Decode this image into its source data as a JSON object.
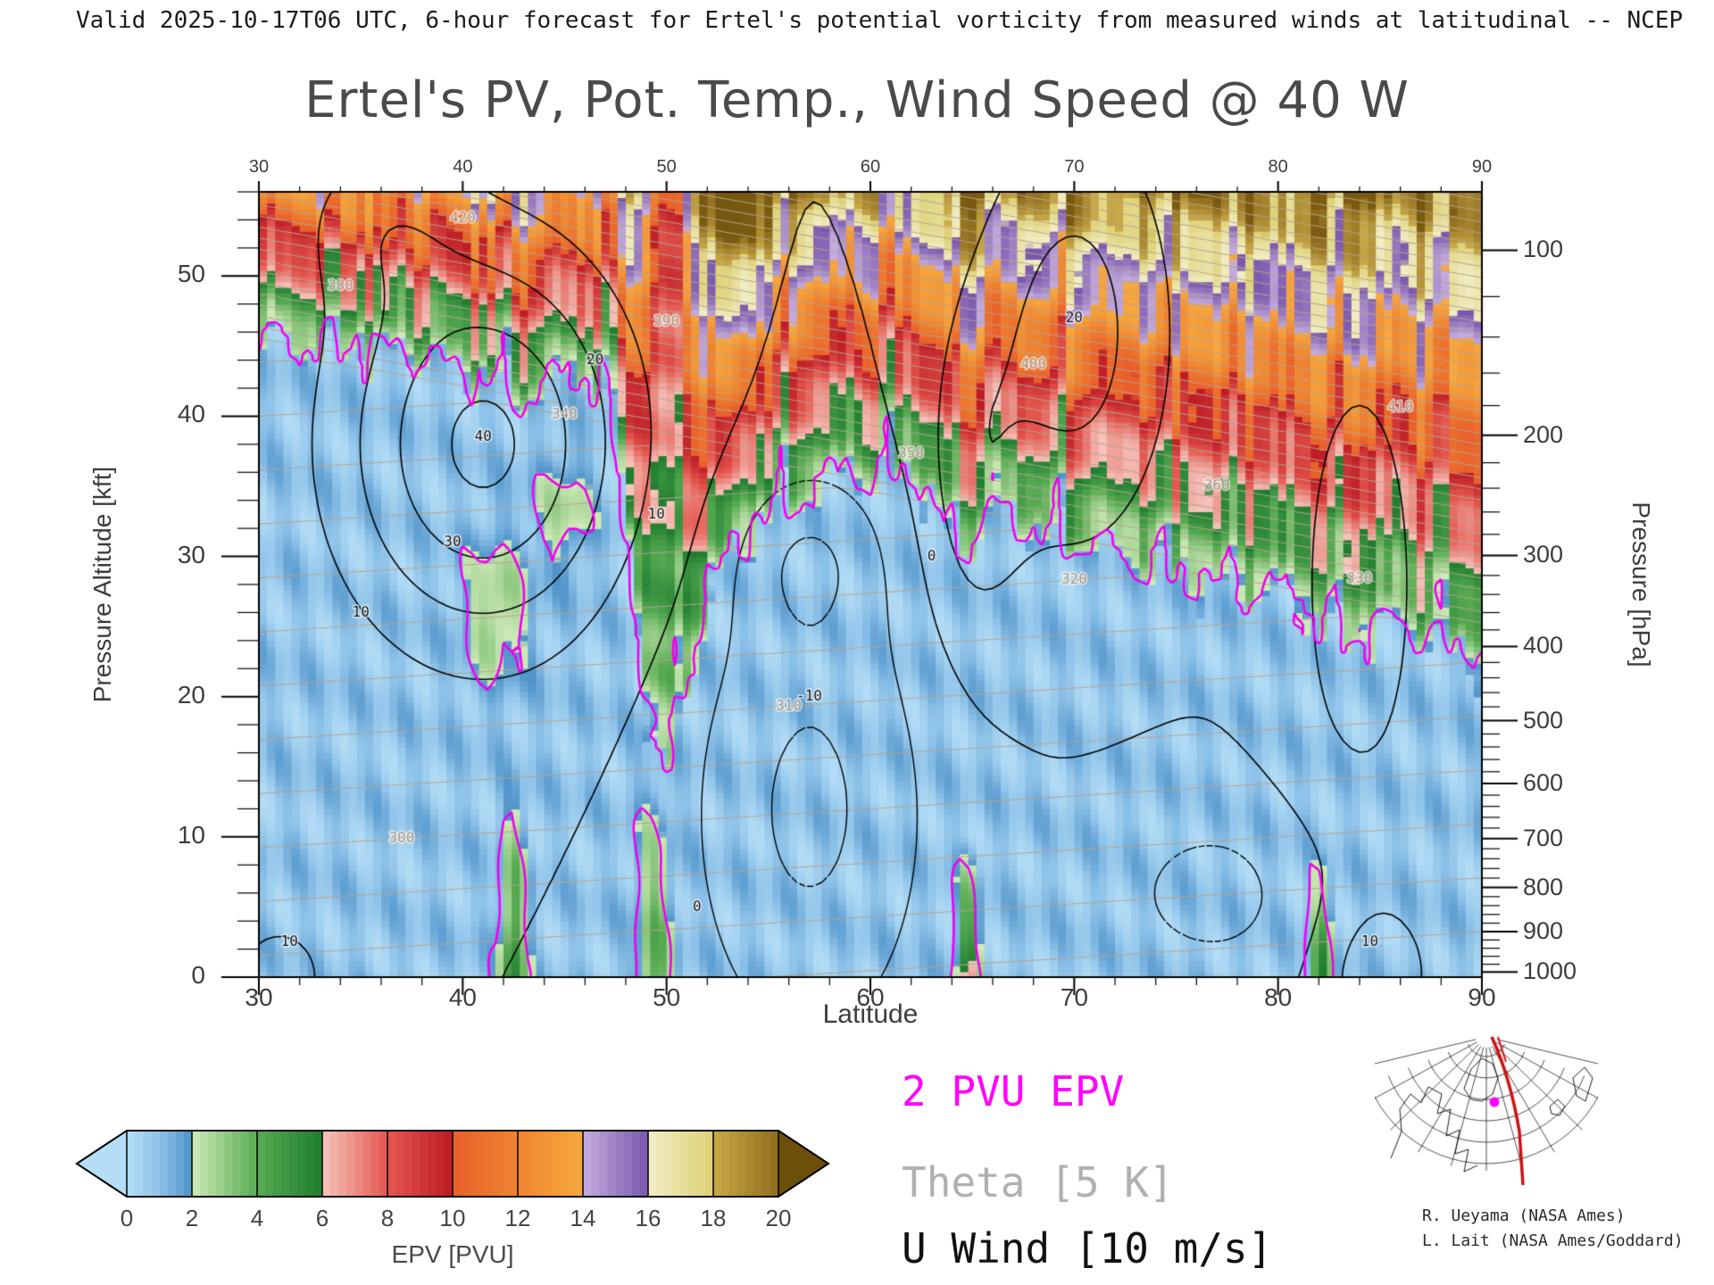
{
  "header": {
    "text": "Valid 2025-10-17T06 UTC, 6-hour forecast for Ertel's potential vorticity from measured winds at latitudinal -- NCEP"
  },
  "title": "Ertel's PV, Pot. Temp., Wind Speed @ 40 W",
  "legend": {
    "epv": "2 PVU EPV",
    "theta": "Theta [5 K]",
    "uwind": "U Wind [10 m/s]",
    "epv_color": "#ff00ff",
    "theta_color": "#b0b0b0",
    "uwind_color": "#111111"
  },
  "credits": [
    "R. Ueyama (NASA Ames)",
    "L. Lait (NASA Ames/Goddard)"
  ],
  "chart_data": {
    "type": "heatmap",
    "title": "Ertel's PV, Pot. Temp., Wind Speed @ 40 W",
    "xlabel": "Latitude",
    "ylabel_left": "Pressure Altitude [kft]",
    "ylabel_right": "Pressure [hPa]",
    "xlim": [
      30,
      90
    ],
    "ylim_kft": [
      0,
      56
    ],
    "x_ticks": [
      30,
      40,
      50,
      60,
      70,
      80,
      90
    ],
    "y_ticks_left": [
      0,
      10,
      20,
      30,
      40,
      50
    ],
    "y_ticks_right": [
      100,
      200,
      300,
      400,
      500,
      600,
      700,
      800,
      900,
      1000
    ],
    "grid": false,
    "legend_position": "bottom",
    "colorbar": {
      "label": "EPV [PVU]",
      "ticks": [
        0,
        2,
        4,
        6,
        8,
        10,
        12,
        14,
        16,
        18,
        20
      ]
    },
    "colormap": [
      [
        0,
        "#b5def6"
      ],
      [
        1,
        "#8fc3e9"
      ],
      [
        1.99,
        "#4f93c9"
      ],
      [
        2,
        "#cfeab8"
      ],
      [
        4,
        "#58ac53"
      ],
      [
        5.99,
        "#1f7d2f"
      ],
      [
        6,
        "#f6c5bd"
      ],
      [
        8,
        "#e4574e"
      ],
      [
        9.99,
        "#bd1c24"
      ],
      [
        10,
        "#e95f2b"
      ],
      [
        12,
        "#ef8431"
      ],
      [
        13.99,
        "#f7a93e"
      ],
      [
        14,
        "#c4addf"
      ],
      [
        15.99,
        "#7a57ad"
      ],
      [
        16,
        "#f1edc5"
      ],
      [
        17.99,
        "#ded175"
      ],
      [
        18,
        "#c9a946"
      ],
      [
        19.99,
        "#8f6d1e"
      ],
      [
        20,
        "#7c5c11"
      ],
      [
        26,
        "#684c0a"
      ]
    ],
    "epv_contour_color": "#f000f0",
    "theta_color": "#b7a38f",
    "theta_label_color": "#a8917c",
    "fields": {
      "zmax_kft": 56,
      "tropopause_2pvu": [
        [
          30,
          45
        ],
        [
          38,
          44
        ],
        [
          43,
          41
        ],
        [
          46,
          43
        ],
        [
          47.5,
          38
        ],
        [
          49,
          16
        ],
        [
          50,
          14
        ],
        [
          51,
          22
        ],
        [
          53,
          30
        ],
        [
          55,
          33
        ],
        [
          58,
          35
        ],
        [
          62,
          36
        ],
        [
          64,
          30
        ],
        [
          66,
          33
        ],
        [
          69,
          31
        ],
        [
          72,
          30
        ],
        [
          76,
          28
        ],
        [
          80,
          27
        ],
        [
          83,
          24
        ],
        [
          86,
          25
        ],
        [
          90,
          22
        ]
      ],
      "trop_wiggle": [
        [
          1.4,
          2.3,
          0
        ],
        [
          0.9,
          5.1,
          1
        ],
        [
          0.7,
          9.7,
          2
        ],
        [
          0.5,
          15.7,
          0.7
        ]
      ],
      "epv_slope": {
        "base": 1.0,
        "per_lat": -0.008,
        "fold_lat": 49.8,
        "fold_width": 1.8,
        "fold_reduction": 0.8
      },
      "strat_noise": [
        [
          0.9,
          3.7,
          0.5
        ],
        [
          0.6,
          7.3,
          2.0
        ],
        [
          0.5,
          13.1,
          1.0
        ]
      ],
      "strat_noise_z": [
        0.7,
        1.1,
        0.7
      ],
      "tropos_base": {
        "mean": 0.9,
        "terms": [
          [
            0.5,
            2.9,
            0.33,
            1.3
          ],
          [
            0.35,
            0.61,
            0.9,
            0.4
          ]
        ]
      },
      "low_spikes": [
        [
          42.3,
          0.6,
          5,
          15
        ],
        [
          49.2,
          0.8,
          3.5,
          17
        ],
        [
          64.6,
          0.5,
          6,
          10
        ],
        [
          81.9,
          0.5,
          5,
          9
        ]
      ],
      "blobs": [
        [
          41.5,
          26,
          1.5,
          5,
          2.2
        ],
        [
          44.8,
          33,
          1.3,
          4,
          1.8
        ]
      ],
      "jets": [
        [
          41,
          38,
          7,
          14,
          42
        ],
        [
          36,
          54,
          4,
          6,
          12
        ],
        [
          57,
          12,
          6,
          18,
          -22
        ],
        [
          57,
          30,
          3.5,
          6,
          -14
        ],
        [
          70,
          46,
          5,
          16,
          24
        ],
        [
          84,
          28,
          4,
          22,
          14
        ],
        [
          77,
          6,
          6,
          7,
          -13
        ],
        [
          31,
          0,
          3,
          5,
          14
        ],
        [
          85,
          0,
          3,
          6,
          14
        ],
        [
          65,
          35,
          2.5,
          12,
          13
        ]
      ],
      "u_levels_solid": [
        0,
        10,
        20,
        30,
        40
      ],
      "u_levels_dashed": [
        -30,
        -20,
        -10
      ],
      "theta": {
        "t0": 288,
        "lapse_tropo": 1.3,
        "lapse_strat_extra": 5.0,
        "lat_grad": -0.12,
        "levels_min": 285,
        "levels_max": 520,
        "step": 5,
        "smooth_trop": [
          [
            30,
            45
          ],
          [
            50,
            38
          ],
          [
            70,
            31
          ],
          [
            90,
            24
          ]
        ]
      },
      "epv_contour_level": 2
    },
    "theta_labels": [
      [
        300,
        37
      ],
      [
        310,
        56
      ],
      [
        320,
        70
      ],
      [
        330,
        84
      ],
      [
        340,
        45
      ],
      [
        350,
        62
      ],
      [
        360,
        77
      ],
      [
        380,
        34
      ],
      [
        390,
        50
      ],
      [
        400,
        68
      ],
      [
        410,
        86
      ],
      [
        420,
        40
      ]
    ],
    "u_labels": [
      [
        "40",
        41,
        38.5
      ],
      [
        "30",
        39.5,
        31
      ],
      [
        "20",
        46.5,
        44
      ],
      [
        "10",
        49.5,
        33
      ],
      [
        "10",
        35,
        26
      ],
      [
        "-10",
        57,
        20
      ],
      [
        "0",
        51.5,
        5
      ],
      [
        "0",
        63,
        30
      ],
      [
        "10",
        31.5,
        2.5
      ],
      [
        "10",
        84.5,
        2.5
      ],
      [
        "20",
        70,
        47
      ]
    ]
  }
}
